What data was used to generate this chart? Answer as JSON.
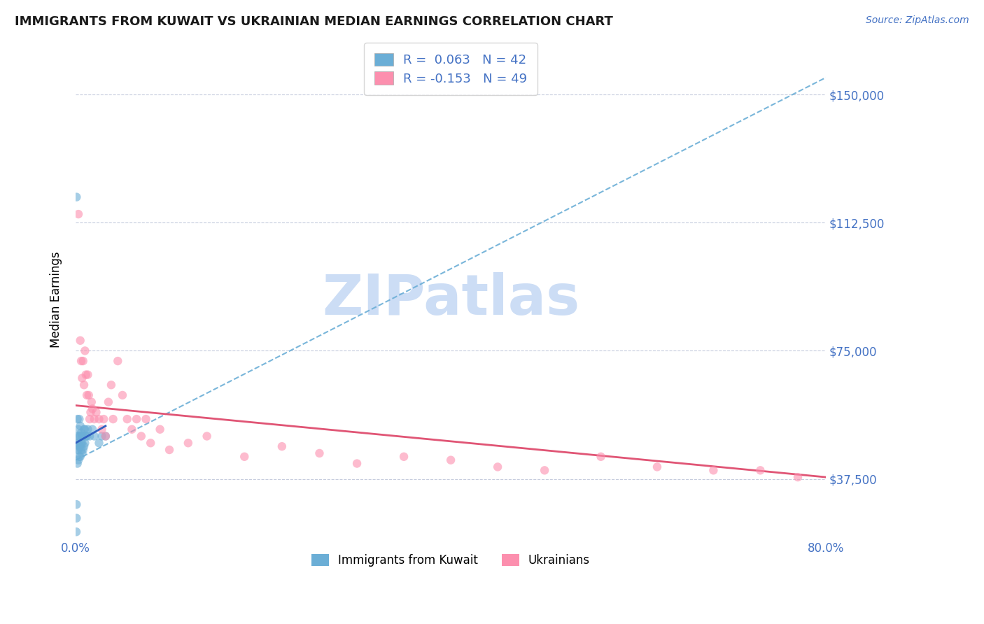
{
  "title": "IMMIGRANTS FROM KUWAIT VS UKRAINIAN MEDIAN EARNINGS CORRELATION CHART",
  "source": "Source: ZipAtlas.com",
  "ylabel": "Median Earnings",
  "xlim": [
    0.0,
    0.8
  ],
  "ylim": [
    20000,
    160000
  ],
  "yticks": [
    37500,
    75000,
    112500,
    150000
  ],
  "ytick_labels": [
    "$37,500",
    "$75,000",
    "$112,500",
    "$150,000"
  ],
  "blue_color": "#6baed6",
  "pink_color": "#fc8fae",
  "axis_color": "#4472c4",
  "trendline_blue_dashed_color": "#6baed6",
  "trendline_pink_color": "#e05575",
  "trendline_blue_solid_color": "#3060c0",
  "watermark_color": "#ccddf5",
  "kuwait_scatter_x": [
    0.0008,
    0.001,
    0.001,
    0.001,
    0.002,
    0.002,
    0.002,
    0.002,
    0.003,
    0.003,
    0.003,
    0.003,
    0.003,
    0.004,
    0.004,
    0.004,
    0.004,
    0.005,
    0.005,
    0.005,
    0.005,
    0.006,
    0.006,
    0.006,
    0.007,
    0.007,
    0.007,
    0.008,
    0.008,
    0.009,
    0.009,
    0.01,
    0.01,
    0.011,
    0.012,
    0.013,
    0.015,
    0.018,
    0.02,
    0.025,
    0.028,
    0.032
  ],
  "kuwait_scatter_y": [
    22000,
    26000,
    30000,
    120000,
    42000,
    46000,
    48000,
    55000,
    43000,
    46000,
    48000,
    50000,
    52000,
    44000,
    47000,
    50000,
    55000,
    44000,
    47000,
    50000,
    53000,
    46000,
    48000,
    51000,
    45000,
    48000,
    50000,
    46000,
    50000,
    47000,
    52000,
    48000,
    52000,
    50000,
    50000,
    52000,
    50000,
    52000,
    50000,
    48000,
    50000,
    50000
  ],
  "ukraine_scatter_x": [
    0.003,
    0.005,
    0.006,
    0.007,
    0.008,
    0.009,
    0.01,
    0.011,
    0.012,
    0.013,
    0.014,
    0.015,
    0.016,
    0.017,
    0.018,
    0.02,
    0.022,
    0.025,
    0.028,
    0.03,
    0.032,
    0.035,
    0.038,
    0.04,
    0.045,
    0.05,
    0.055,
    0.06,
    0.065,
    0.07,
    0.075,
    0.08,
    0.09,
    0.1,
    0.12,
    0.14,
    0.18,
    0.22,
    0.26,
    0.3,
    0.35,
    0.4,
    0.45,
    0.5,
    0.56,
    0.62,
    0.68,
    0.73,
    0.77
  ],
  "ukraine_scatter_y": [
    115000,
    78000,
    72000,
    67000,
    72000,
    65000,
    75000,
    68000,
    62000,
    68000,
    62000,
    55000,
    57000,
    60000,
    58000,
    55000,
    57000,
    55000,
    52000,
    55000,
    50000,
    60000,
    65000,
    55000,
    72000,
    62000,
    55000,
    52000,
    55000,
    50000,
    55000,
    48000,
    52000,
    46000,
    48000,
    50000,
    44000,
    47000,
    45000,
    42000,
    44000,
    43000,
    41000,
    40000,
    44000,
    41000,
    40000,
    40000,
    38000
  ],
  "blue_dashed_trendline_x": [
    0.0,
    0.8
  ],
  "blue_dashed_trendline_y": [
    43000,
    155000
  ],
  "pink_trendline_x": [
    0.0,
    0.8
  ],
  "pink_trendline_y": [
    59000,
    38000
  ],
  "blue_solid_trendline_x": [
    0.0,
    0.032
  ],
  "blue_solid_trendline_y": [
    48000,
    53000
  ]
}
